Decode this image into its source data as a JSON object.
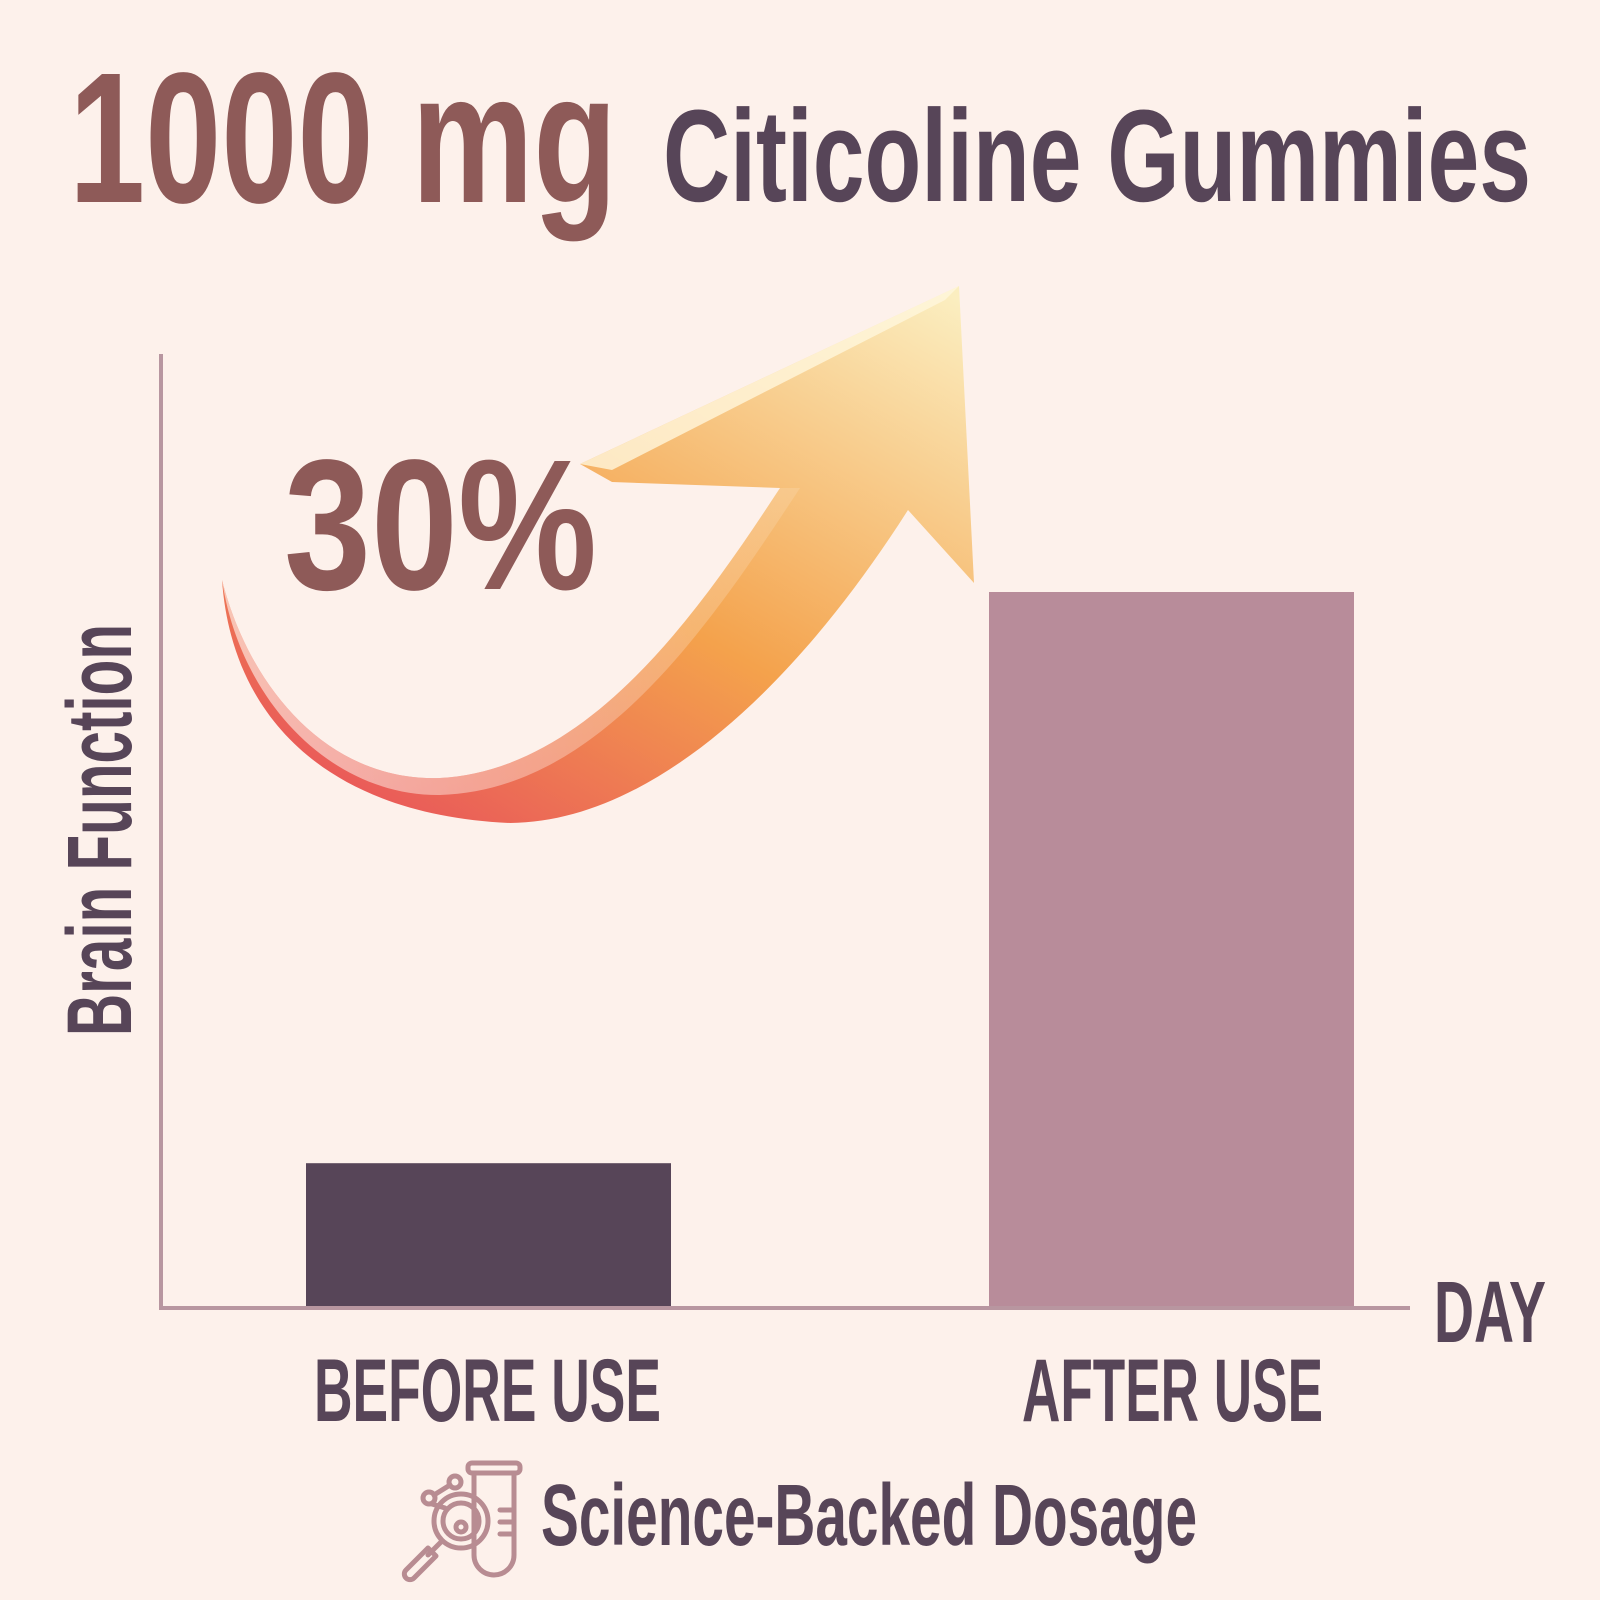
{
  "title": {
    "dose": "1000 mg",
    "product": "Citicoline Gummies"
  },
  "footer": {
    "label": "Science-Backed Dosage",
    "icon": "magnifier-test-tube-icon"
  },
  "colors": {
    "background": "#fdf1eb",
    "dose_text": "#8e5a58",
    "dark_text": "#574558",
    "before_bar": "#574558",
    "after_bar": "#b88c9a",
    "axis": "#b896a0",
    "icon": "#b88c92",
    "arrow_gradient": [
      "#e8525a",
      "#f4a24c",
      "#fbeec0"
    ]
  },
  "chart_data": {
    "type": "bar",
    "title": "",
    "xlabel": "DAY",
    "ylabel": "Brain Function",
    "categories": [
      "BEFORE USE",
      "AFTER USE"
    ],
    "values": [
      15,
      75
    ],
    "ylim": [
      0,
      100
    ],
    "grid": false,
    "annotations": [
      {
        "text": "30%",
        "type": "upward-arrow"
      }
    ]
  }
}
